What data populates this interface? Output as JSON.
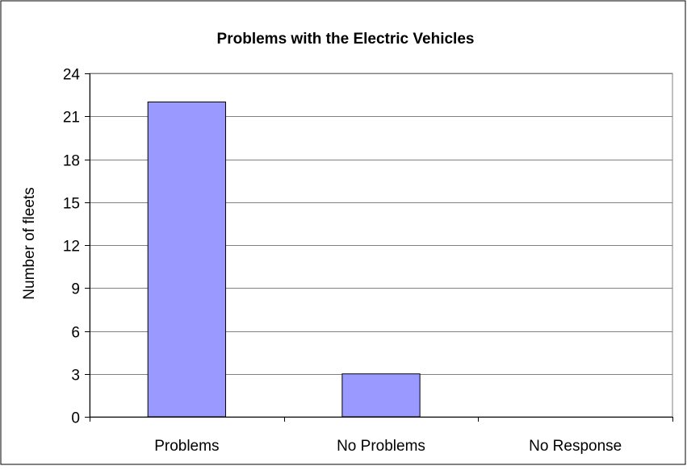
{
  "chart_data": {
    "type": "bar",
    "title": "Problems with the Electric Vehicles",
    "xlabel": "",
    "ylabel": "Number of fleets",
    "categories": [
      "Problems",
      "No Problems",
      "No Response"
    ],
    "values": [
      22,
      3,
      0
    ],
    "ylim": [
      0,
      24
    ],
    "yticks": [
      0,
      3,
      6,
      9,
      12,
      15,
      18,
      21,
      24
    ],
    "grid": true,
    "legend": "none",
    "bar_color": "#9999ff",
    "plot_background": "#ffffff"
  }
}
